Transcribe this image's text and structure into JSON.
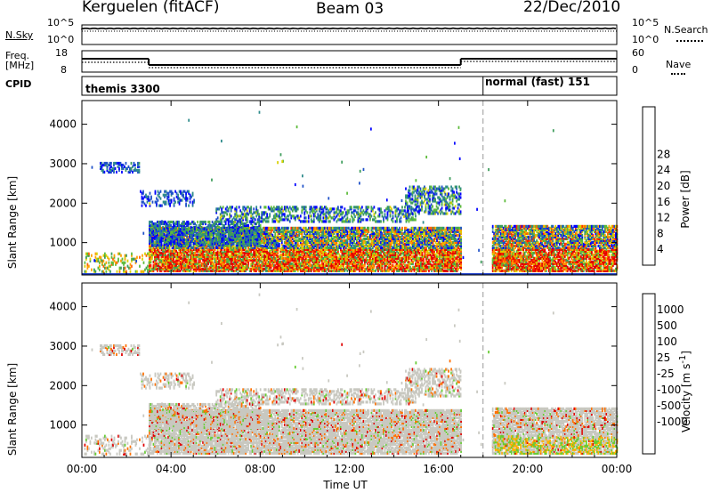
{
  "header": {
    "station": "Kerguelen (fitACF)",
    "beam": "Beam 03",
    "date": "22/Dec/2010"
  },
  "strip_labels": {
    "nsky": "N.Sky",
    "nsky_ticks": [
      "10^5",
      "10^0"
    ],
    "nsearch": "N.Search",
    "nsearch_ticks": [
      "10^5",
      "10^0"
    ],
    "freq": "Freq.",
    "freq_unit": "[MHz]",
    "freq_ticks": [
      "18",
      "8"
    ],
    "nave": "Nave",
    "nave_ticks": [
      "60",
      "0"
    ],
    "cpid": "CPID",
    "cpid_modes": [
      {
        "name": "themis 3300",
        "start_hour": 0
      },
      {
        "name": "normal (fast) 151",
        "start_hour": 18
      }
    ]
  },
  "chart_data": [
    {
      "type": "heatmap",
      "title": "",
      "ylabel": "Slant Range [km]",
      "xlabel": "",
      "xlim_hours": [
        0,
        24
      ],
      "ylim": [
        180,
        4600
      ],
      "yticks": [
        1000,
        2000,
        3000,
        4000
      ],
      "colorbar": {
        "label": "Power [dB]",
        "ticks": [
          4,
          8,
          12,
          16,
          20,
          24,
          28
        ],
        "colors": [
          "#0000ff",
          "#1e50c8",
          "#2e8b8b",
          "#3c9c5a",
          "#5dbb3a",
          "#d8d000",
          "#ffa000",
          "#ff6000",
          "#ff2000",
          "#e00000"
        ]
      },
      "features": [
        {
          "name": "main echo band",
          "hours": [
            3,
            17
          ],
          "range_km": [
            200,
            1400
          ],
          "peak_db": 28
        },
        {
          "name": "far echo band",
          "hours": [
            3,
            17
          ],
          "range_km": [
            1500,
            2400
          ],
          "peak_db": 20
        },
        {
          "name": "early patch",
          "hours": [
            0.8,
            2.6
          ],
          "range_km": [
            2700,
            3000
          ],
          "peak_db": 12
        },
        {
          "name": "post-switch band",
          "hours": [
            18.4,
            24
          ],
          "range_km": [
            200,
            1400
          ],
          "peak_db": 28
        }
      ]
    },
    {
      "type": "heatmap",
      "title": "",
      "ylabel": "Slant Range [km]",
      "xlabel": "Time UT",
      "xlim_hours": [
        0,
        24
      ],
      "ylim": [
        180,
        4600
      ],
      "yticks": [
        1000,
        2000,
        3000,
        4000
      ],
      "xticks": [
        "00:00",
        "04:00",
        "08:00",
        "12:00",
        "16:00",
        "20:00",
        "00:00"
      ],
      "colorbar": {
        "label": "Velocity [m s^-1]",
        "ticks": [
          "1000",
          "500",
          "100",
          "25",
          "-25",
          "-100",
          "-500",
          "-1000"
        ],
        "colors": [
          "#1e3cc8",
          "#2e6eb4",
          "#3c9c5a",
          "#66cc33",
          "#c8c8c0",
          "#c8c8c0",
          "#ffb000",
          "#ff7000",
          "#ff3000",
          "#e00000"
        ]
      }
    }
  ]
}
